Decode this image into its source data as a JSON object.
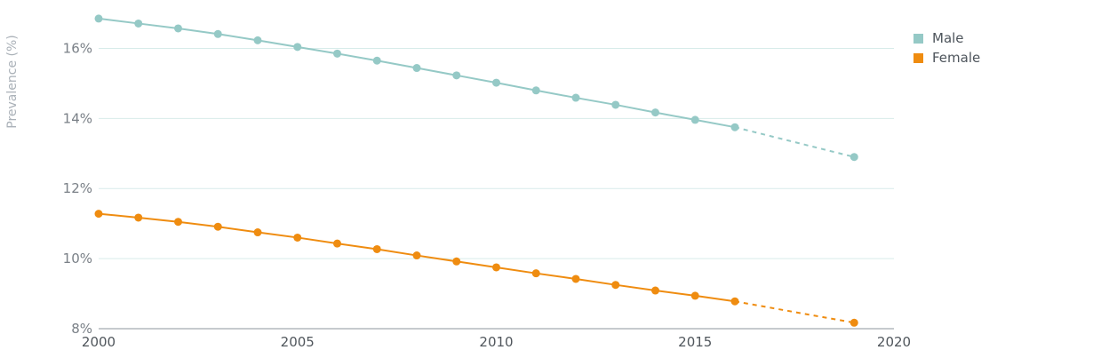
{
  "chart_data": {
    "type": "line",
    "title": "",
    "xlabel": "",
    "ylabel": "Prevalence (%)",
    "xlim": [
      2000,
      2020
    ],
    "ylim": [
      8,
      17
    ],
    "x_ticks": [
      2000,
      2005,
      2010,
      2015,
      2020
    ],
    "y_ticks": [
      8,
      10,
      12,
      14,
      16
    ],
    "y_tick_labels": [
      "8%",
      "10%",
      "12%",
      "14%",
      "16%"
    ],
    "grid": "horizontal",
    "legend_position": "top-right",
    "series": [
      {
        "name": "Male",
        "color": "#95c9c6",
        "x": [
          2000,
          2001,
          2002,
          2003,
          2004,
          2005,
          2006,
          2007,
          2008,
          2009,
          2010,
          2011,
          2012,
          2013,
          2014,
          2015,
          2016,
          2019
        ],
        "values": [
          16.85,
          16.71,
          16.57,
          16.41,
          16.23,
          16.04,
          15.85,
          15.65,
          15.44,
          15.23,
          15.02,
          14.8,
          14.59,
          14.39,
          14.17,
          13.96,
          13.75,
          12.9
        ],
        "projected_from": 2016
      },
      {
        "name": "Female",
        "color": "#ef8c10",
        "x": [
          2000,
          2001,
          2002,
          2003,
          2004,
          2005,
          2006,
          2007,
          2008,
          2009,
          2010,
          2011,
          2012,
          2013,
          2014,
          2015,
          2016,
          2019
        ],
        "values": [
          11.28,
          11.17,
          11.05,
          10.91,
          10.75,
          10.6,
          10.43,
          10.27,
          10.09,
          9.92,
          9.75,
          9.58,
          9.42,
          9.25,
          9.09,
          8.94,
          8.78,
          8.17
        ],
        "projected_from": 2016
      }
    ]
  }
}
